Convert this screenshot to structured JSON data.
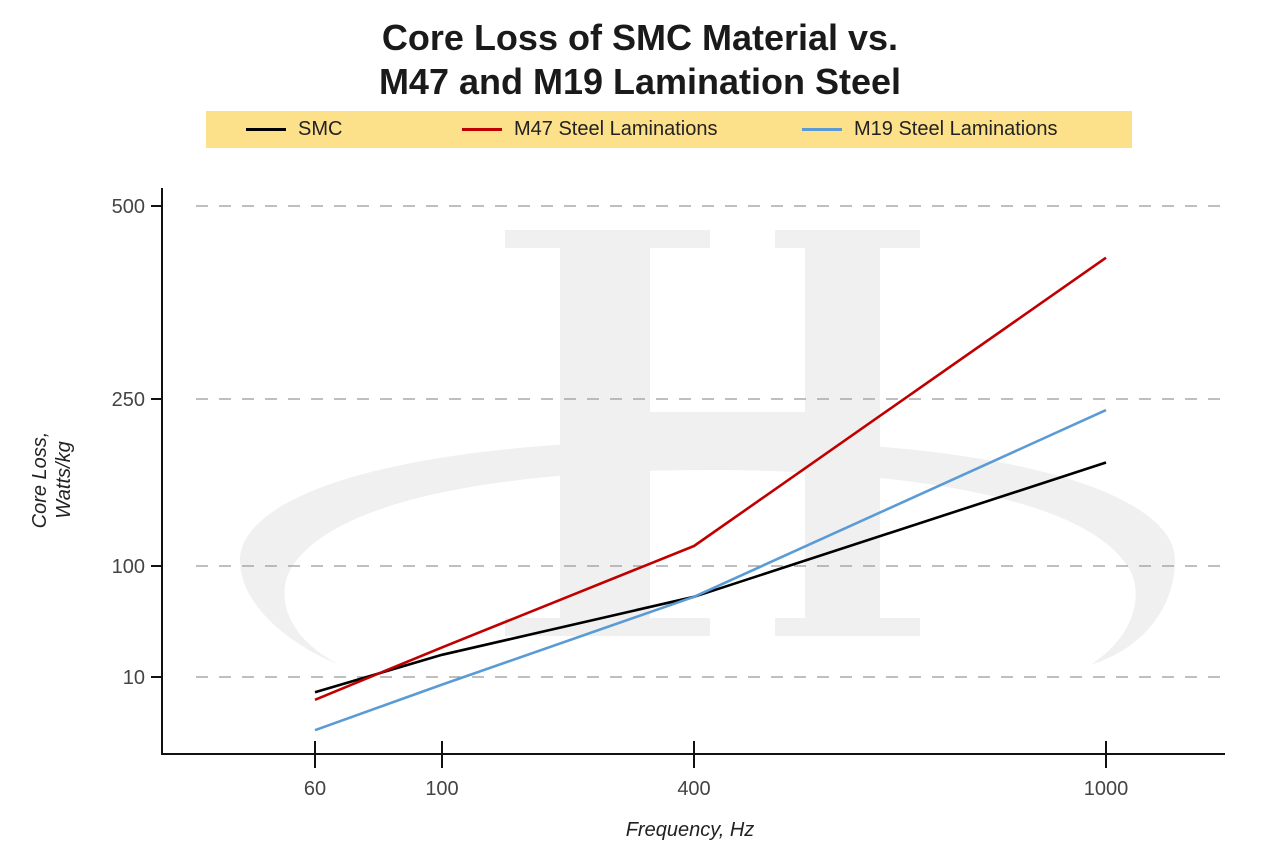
{
  "chart_data": {
    "type": "line",
    "title_line1": "Core Loss of SMC Material vs.",
    "title_line2": "M47 and M19 Lamination Steel",
    "xlabel": "Frequency, Hz",
    "ylabel_line1": "Core Loss,",
    "ylabel_line2": "Watts/kg",
    "x": [
      60,
      100,
      400,
      1000
    ],
    "x_ticks": [
      "60",
      "100",
      "400",
      "1000"
    ],
    "y_ticks": [
      "10",
      "100",
      "250",
      "500"
    ],
    "grid": "horizontal dashed",
    "legend_position": "top",
    "series": [
      {
        "name": "SMC",
        "color": "#000000",
        "values": [
          8,
          28,
          75,
          193
        ]
      },
      {
        "name": "M47 Steel Laminations",
        "color": "#c00000",
        "values": [
          7,
          34,
          118,
          433
        ]
      },
      {
        "name": "M19 Steel Laminations",
        "color": "#5b9bd5",
        "values": [
          3,
          9,
          75,
          240
        ]
      }
    ]
  },
  "legend_bg": "#fce08a",
  "watermark": "H"
}
